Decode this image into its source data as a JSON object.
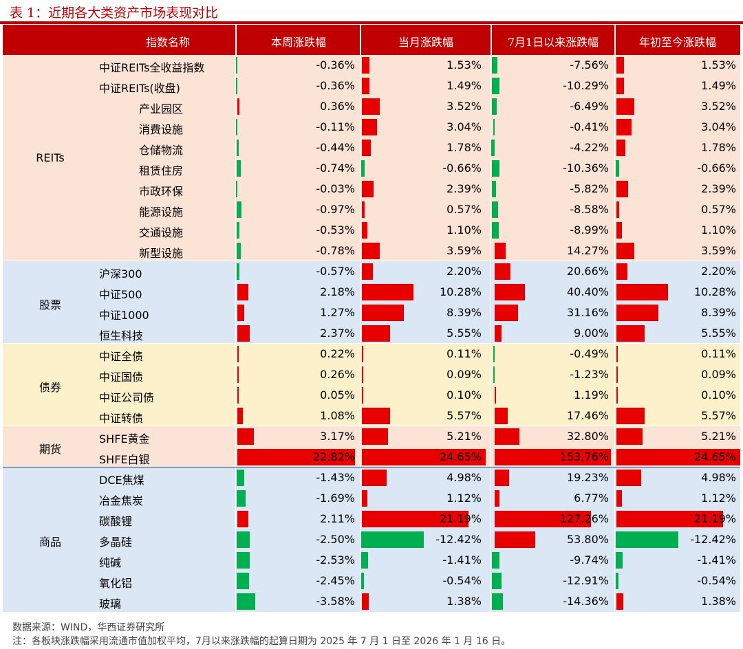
{
  "title": "表 1：近期各大类资产市场表现对比",
  "headers": [
    "指数名称",
    "本周涨跌幅",
    "当月涨跌幅",
    "7月1日以来涨跌幅",
    "年初至今涨跌幅"
  ],
  "colors": {
    "header_bg": "#c00000",
    "positive_bar": "#e60000",
    "negative_bar": "#00b050",
    "reits_bg": "#fbe3d6",
    "stocks_bg": "#dbe7f4",
    "bonds_bg": "#fdf1cc",
    "futures_bg": "#fbe3d6",
    "commodities_bg": "#dbe7f4"
  },
  "groups": [
    {
      "label": "REITs",
      "bg": "#fbe3d6",
      "rows": [
        {
          "name": "中证REITs全收益指数",
          "indent": 0,
          "values": [
            "-0.36%",
            "1.53%",
            "-7.56%",
            "1.53%"
          ]
        },
        {
          "name": "中证REITs(收盘)",
          "indent": 0,
          "values": [
            "-0.36%",
            "1.49%",
            "-10.29%",
            "1.49%"
          ]
        },
        {
          "name": "产业园区",
          "indent": 1,
          "values": [
            "0.36%",
            "3.52%",
            "-6.49%",
            "3.52%"
          ]
        },
        {
          "name": "消费设施",
          "indent": 1,
          "values": [
            "-0.11%",
            "3.04%",
            "-0.41%",
            "3.04%"
          ]
        },
        {
          "name": "仓储物流",
          "indent": 1,
          "values": [
            "-0.44%",
            "1.78%",
            "-4.22%",
            "1.78%"
          ]
        },
        {
          "name": "租赁住房",
          "indent": 1,
          "values": [
            "-0.74%",
            "-0.66%",
            "-10.36%",
            "-0.66%"
          ]
        },
        {
          "name": "市政环保",
          "indent": 1,
          "values": [
            "-0.03%",
            "2.39%",
            "-5.82%",
            "2.39%"
          ]
        },
        {
          "name": "能源设施",
          "indent": 1,
          "values": [
            "-0.97%",
            "0.57%",
            "-8.58%",
            "0.57%"
          ]
        },
        {
          "name": "交通设施",
          "indent": 1,
          "values": [
            "-0.53%",
            "1.10%",
            "-8.99%",
            "1.10%"
          ]
        },
        {
          "name": "新型设施",
          "indent": 1,
          "values": [
            "-0.78%",
            "3.59%",
            "14.27%",
            "3.59%"
          ]
        }
      ]
    },
    {
      "label": "股票",
      "bg": "#dbe7f4",
      "rows": [
        {
          "name": "沪深300",
          "indent": 0,
          "values": [
            "-0.57%",
            "2.20%",
            "20.66%",
            "2.20%"
          ]
        },
        {
          "name": "中证500",
          "indent": 0,
          "values": [
            "2.18%",
            "10.28%",
            "40.40%",
            "10.28%"
          ]
        },
        {
          "name": "中证1000",
          "indent": 0,
          "values": [
            "1.27%",
            "8.39%",
            "31.16%",
            "8.39%"
          ]
        },
        {
          "name": "恒生科技",
          "indent": 0,
          "values": [
            "2.37%",
            "5.55%",
            "9.00%",
            "5.55%"
          ]
        }
      ]
    },
    {
      "label": "债券",
      "bg": "#fdf1cc",
      "rows": [
        {
          "name": "中证全债",
          "indent": 0,
          "values": [
            "0.22%",
            "0.11%",
            "-0.49%",
            "0.11%"
          ]
        },
        {
          "name": "中证国债",
          "indent": 0,
          "values": [
            "0.26%",
            "0.09%",
            "-1.23%",
            "0.09%"
          ]
        },
        {
          "name": "中证公司债",
          "indent": 0,
          "values": [
            "0.05%",
            "0.10%",
            "1.19%",
            "0.10%"
          ]
        },
        {
          "name": "中证转债",
          "indent": 0,
          "values": [
            "1.08%",
            "5.57%",
            "17.46%",
            "5.57%"
          ]
        }
      ]
    },
    {
      "label": "期货",
      "bg": "#fbe3d6",
      "rows": [
        {
          "name": "SHFE黄金",
          "indent": 0,
          "values": [
            "3.17%",
            "5.21%",
            "32.80%",
            "5.21%"
          ]
        },
        {
          "name": "SHFE白银",
          "indent": 0,
          "values": [
            "22.82%",
            "24.65%",
            "153.76%",
            "24.65%"
          ]
        }
      ]
    },
    {
      "label": "商品",
      "bg": "#dbe7f4",
      "rows": [
        {
          "name": "DCE焦煤",
          "indent": 0,
          "values": [
            "-1.43%",
            "4.98%",
            "19.23%",
            "4.98%"
          ]
        },
        {
          "name": "冶金焦炭",
          "indent": 0,
          "values": [
            "-1.69%",
            "1.12%",
            "6.77%",
            "1.12%"
          ]
        },
        {
          "name": "碳酸锂",
          "indent": 0,
          "values": [
            "2.11%",
            "21.19%",
            "127.26%",
            "21.19%"
          ]
        },
        {
          "name": "多晶硅",
          "indent": 0,
          "values": [
            "-2.50%",
            "-12.42%",
            "53.80%",
            "-12.42%"
          ]
        },
        {
          "name": "纯碱",
          "indent": 0,
          "values": [
            "-2.53%",
            "-1.41%",
            "-9.74%",
            "-1.41%"
          ]
        },
        {
          "name": "氧化铝",
          "indent": 0,
          "values": [
            "-2.45%",
            "-0.54%",
            "-12.91%",
            "-0.54%"
          ]
        },
        {
          "name": "玻璃",
          "indent": 0,
          "values": [
            "-3.58%",
            "1.38%",
            "-14.36%",
            "1.38%"
          ]
        }
      ]
    }
  ],
  "footnotes": {
    "source": "数据来源：WIND，华西证券研究所",
    "note": "注：各板块涨跌幅采用流通市值加权平均，7月以来涨跌幅的起算日期为 2025 年 7 月 1 日至 2026 年 1 月 16 日。"
  }
}
